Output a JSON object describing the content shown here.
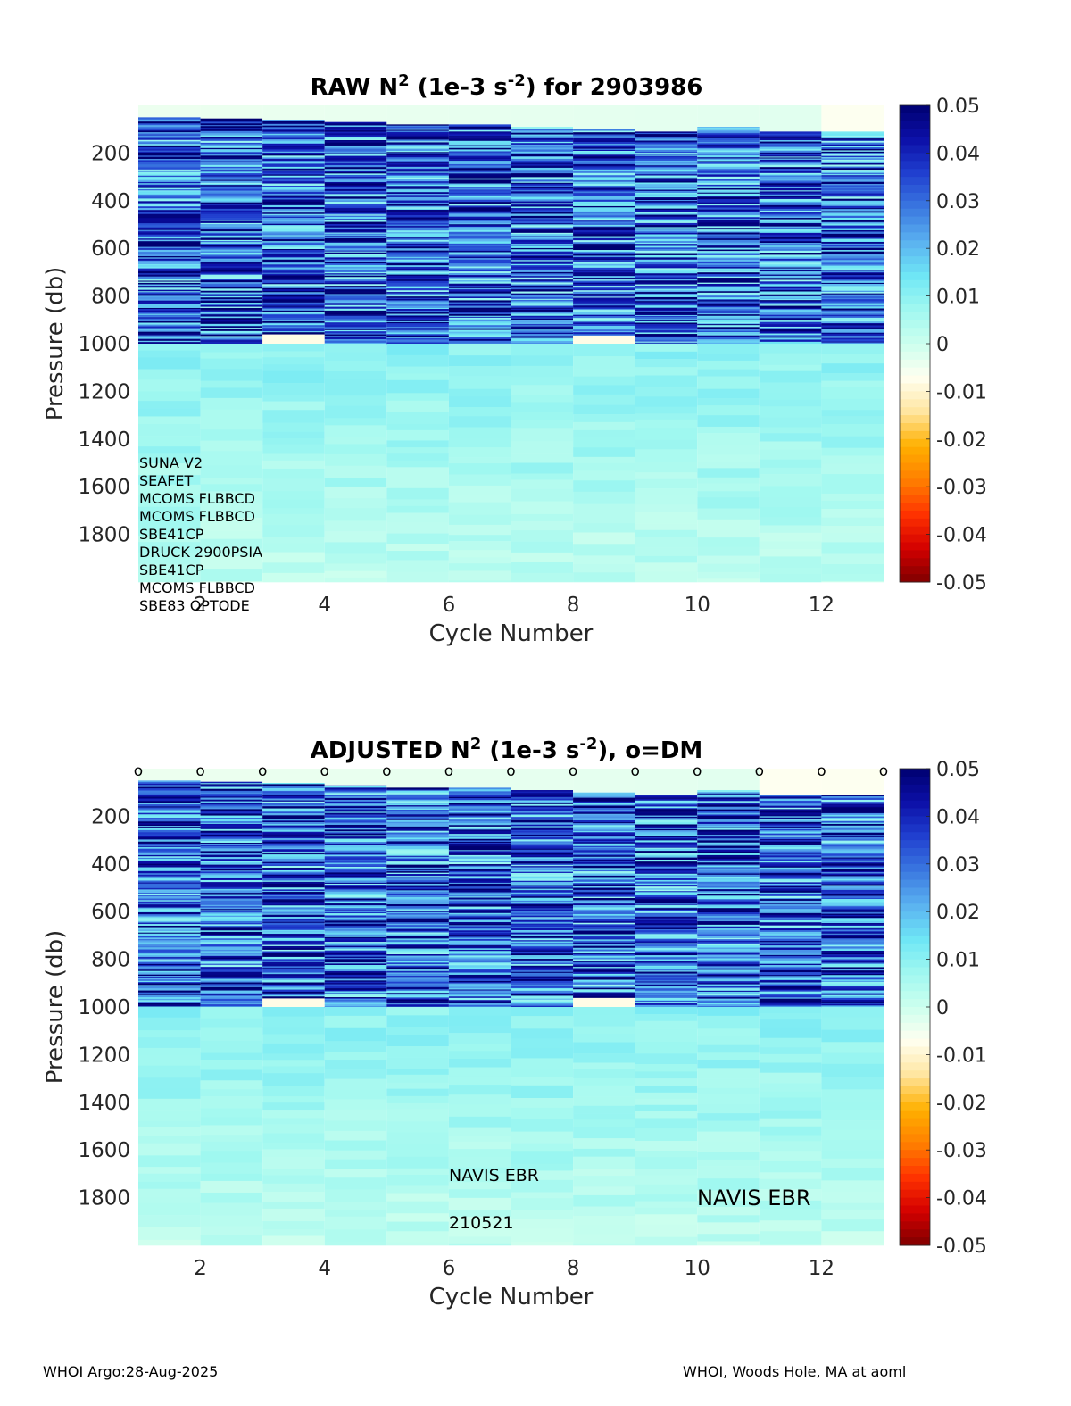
{
  "footer": {
    "left": "WHOI Argo:28-Aug-2025",
    "right": "WHOI, Woods Hole, MA at aoml"
  },
  "colors": {
    "text": "#262626",
    "title": "#000000",
    "cmap": [
      "#800000",
      "#d40000",
      "#ff3300",
      "#ff8000",
      "#ffb000",
      "#ffe6a0",
      "#fffff0",
      "#ccffee",
      "#a0f8f0",
      "#6ee6f5",
      "#5ab0f0",
      "#3a78e0",
      "#2040d0",
      "#0c10a8",
      "#000070"
    ]
  },
  "chart_data": [
    {
      "type": "heatmap",
      "id": "raw",
      "title_parts": [
        "RAW N",
        "2",
        " (1e-3 s",
        "-2",
        ") for 2903986"
      ],
      "xlabel": "Cycle Number",
      "ylabel": "Pressure (db)",
      "xlim": [
        1,
        13
      ],
      "ylim": [
        0,
        2000
      ],
      "x_ticks": [
        "2",
        "4",
        "6",
        "8",
        "10",
        "12"
      ],
      "x_tick_values": [
        2,
        4,
        6,
        8,
        10,
        12
      ],
      "y_ticks": [
        "200",
        "400",
        "600",
        "800",
        "1000",
        "1200",
        "1400",
        "1600",
        "1800"
      ],
      "y_tick_values": [
        200,
        400,
        600,
        800,
        1000,
        1200,
        1400,
        1600,
        1800
      ],
      "colorbar": {
        "range": [
          -0.05,
          0.05
        ],
        "ticks": [
          "0.05",
          "0.04",
          "0.03",
          "0.02",
          "0.01",
          "0",
          "-0.01",
          "-0.02",
          "-0.03",
          "-0.04",
          "-0.05"
        ],
        "tick_values": [
          0.05,
          0.04,
          0.03,
          0.02,
          0.01,
          0,
          -0.01,
          -0.02,
          -0.03,
          -0.04,
          -0.05
        ]
      },
      "cycles": [
        1,
        2,
        3,
        4,
        5,
        6,
        7,
        8,
        9,
        10,
        11,
        12
      ],
      "upper_layer_top_db": [
        50,
        55,
        60,
        70,
        80,
        80,
        90,
        100,
        110,
        90,
        110,
        110
      ],
      "upper_layer_mean": 0.03,
      "deep_layer_start_db": 1000,
      "deep_layer_mean": 0.008,
      "surface_value": -0.005,
      "negative_band_at_1000db": [
        3,
        8
      ],
      "annotations": [
        "SUNA V2",
        "SEAFET",
        "MCOMS FLBBCD",
        "MCOMS FLBBCD",
        "SBE41CP",
        "DRUCK 2900PSIA",
        "SBE41CP",
        "MCOMS FLBBCD",
        "SBE83 OPTODE"
      ],
      "dm_markers": [],
      "float_labels": []
    },
    {
      "type": "heatmap",
      "id": "adjusted",
      "title_parts": [
        "ADJUSTED N",
        "2",
        " (1e-3 s",
        "-2",
        "), o=DM"
      ],
      "xlabel": "Cycle Number",
      "ylabel": "Pressure (db)",
      "xlim": [
        1,
        13
      ],
      "ylim": [
        0,
        2000
      ],
      "x_ticks": [
        "2",
        "4",
        "6",
        "8",
        "10",
        "12"
      ],
      "x_tick_values": [
        2,
        4,
        6,
        8,
        10,
        12
      ],
      "y_ticks": [
        "200",
        "400",
        "600",
        "800",
        "1000",
        "1200",
        "1400",
        "1600",
        "1800"
      ],
      "y_tick_values": [
        200,
        400,
        600,
        800,
        1000,
        1200,
        1400,
        1600,
        1800
      ],
      "colorbar": {
        "range": [
          -0.05,
          0.05
        ],
        "ticks": [
          "0.05",
          "0.04",
          "0.03",
          "0.02",
          "0.01",
          "0",
          "-0.01",
          "-0.02",
          "-0.03",
          "-0.04",
          "-0.05"
        ],
        "tick_values": [
          0.05,
          0.04,
          0.03,
          0.02,
          0.01,
          0,
          -0.01,
          -0.02,
          -0.03,
          -0.04,
          -0.05
        ]
      },
      "cycles": [
        1,
        2,
        3,
        4,
        5,
        6,
        7,
        8,
        9,
        10,
        11,
        12
      ],
      "upper_layer_top_db": [
        50,
        55,
        60,
        70,
        80,
        80,
        90,
        100,
        110,
        90,
        110,
        110
      ],
      "upper_layer_mean": 0.03,
      "deep_layer_start_db": 1000,
      "deep_layer_mean": 0.008,
      "surface_value": -0.005,
      "negative_band_at_1000db": [
        3,
        8
      ],
      "annotations": [],
      "dm_markers": [
        1,
        2,
        3,
        4,
        5,
        6,
        7,
        8,
        9,
        10,
        11,
        12,
        13
      ],
      "dm_symbol": "o",
      "float_labels": [
        "NAVIS EBR",
        "210521",
        "NAVIS EBR"
      ]
    }
  ]
}
